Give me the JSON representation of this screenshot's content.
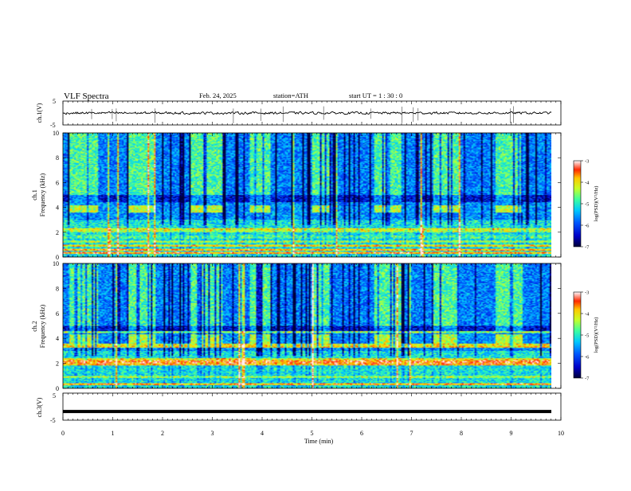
{
  "header": {
    "title": "VLF  Spectra",
    "date": "Feb. 24, 2025",
    "station": "station=ATH",
    "start_ut": "start  UT  =   1  : 30 : 0"
  },
  "chart_data": [
    {
      "type": "line",
      "name": "ch1-waveform",
      "ylabel": "ch.1(V)",
      "ylim": [
        -5,
        5
      ],
      "yticks": [
        "5",
        "-5"
      ],
      "xlim": [
        0,
        10
      ],
      "mean_level": 0,
      "amplitude": 0.7
    },
    {
      "type": "heatmap",
      "name": "ch1-spectrogram",
      "ylabel_top": "ch.1",
      "ylabel": "Frequency  (kHz)",
      "ylim": [
        0,
        10
      ],
      "yticks": [
        "0",
        "2",
        "4",
        "6",
        "8",
        "10"
      ],
      "xlim": [
        0,
        9.8
      ],
      "colorbar": {
        "label": "log(PSD)(V²/Hz)",
        "range": [
          -7,
          -3
        ],
        "ticks": [
          "-3",
          "-4",
          "-5",
          "-6",
          "-7"
        ]
      },
      "pulse_windows_min": [
        [
          0.1,
          0.7
        ],
        [
          1.3,
          1.85
        ],
        [
          2.55,
          3.2
        ],
        [
          3.75,
          4.15
        ],
        [
          5.0,
          5.35
        ],
        [
          6.25,
          6.8
        ],
        [
          7.45,
          7.95
        ],
        [
          8.7,
          9.25
        ]
      ],
      "pulse_band_khz": [
        3.6,
        4.2
      ],
      "stripes": [
        {
          "freq_khz": 0.3,
          "level": -3.4
        },
        {
          "freq_khz": 0.55,
          "level": -3.5
        },
        {
          "freq_khz": 0.85,
          "level": -3.7
        },
        {
          "freq_khz": 1.2,
          "level": -4.2
        },
        {
          "freq_khz": 1.6,
          "level": -4.6
        },
        {
          "freq_khz": 2.05,
          "level": -4.1
        },
        {
          "freq_khz": 2.2,
          "level": -3.9
        },
        {
          "freq_khz": 2.5,
          "level": -5.0
        }
      ]
    },
    {
      "type": "heatmap",
      "name": "ch2-spectrogram",
      "ylabel_top": "ch.2",
      "ylabel": "Frequency  (kHz)",
      "ylim": [
        0,
        10
      ],
      "yticks": [
        "0",
        "2",
        "4",
        "6",
        "8",
        "10"
      ],
      "xlim": [
        0,
        9.8
      ],
      "colorbar": {
        "label": "log(PSD)(V²/Hz)",
        "range": [
          -7,
          -3
        ],
        "ticks": [
          "-3",
          "-4",
          "-5",
          "-6",
          "-7"
        ]
      },
      "pulse_windows_min": [
        [
          0.1,
          0.7
        ],
        [
          1.3,
          1.85
        ],
        [
          2.55,
          3.2
        ],
        [
          3.75,
          4.15
        ],
        [
          5.0,
          5.35
        ],
        [
          6.25,
          6.8
        ],
        [
          7.45,
          7.95
        ],
        [
          8.7,
          9.25
        ]
      ],
      "pulse_band_khz": [
        3.6,
        4.3
      ],
      "stripes": [
        {
          "freq_khz": 0.3,
          "level": -3.5
        },
        {
          "freq_khz": 0.9,
          "level": -4.2
        },
        {
          "freq_khz": 1.9,
          "level": -3.4
        },
        {
          "freq_khz": 2.1,
          "level": -3.2
        },
        {
          "freq_khz": 2.3,
          "level": -3.8
        },
        {
          "freq_khz": 3.3,
          "level": -3.7
        },
        {
          "freq_khz": 3.5,
          "level": -3.9
        },
        {
          "freq_khz": 4.5,
          "level": -4.3
        }
      ]
    },
    {
      "type": "line",
      "name": "ch3-waveform",
      "ylabel": "ch.3(V)",
      "ylim": [
        -5,
        5
      ],
      "yticks": [
        "5",
        "-5"
      ],
      "xlim": [
        0,
        10
      ],
      "mean_level": -1.8
    }
  ],
  "xaxis": {
    "label": "Time  (min)",
    "ticks": [
      "0",
      "1",
      "2",
      "3",
      "4",
      "5",
      "6",
      "7",
      "8",
      "9",
      "10"
    ],
    "range": [
      0,
      10
    ]
  }
}
